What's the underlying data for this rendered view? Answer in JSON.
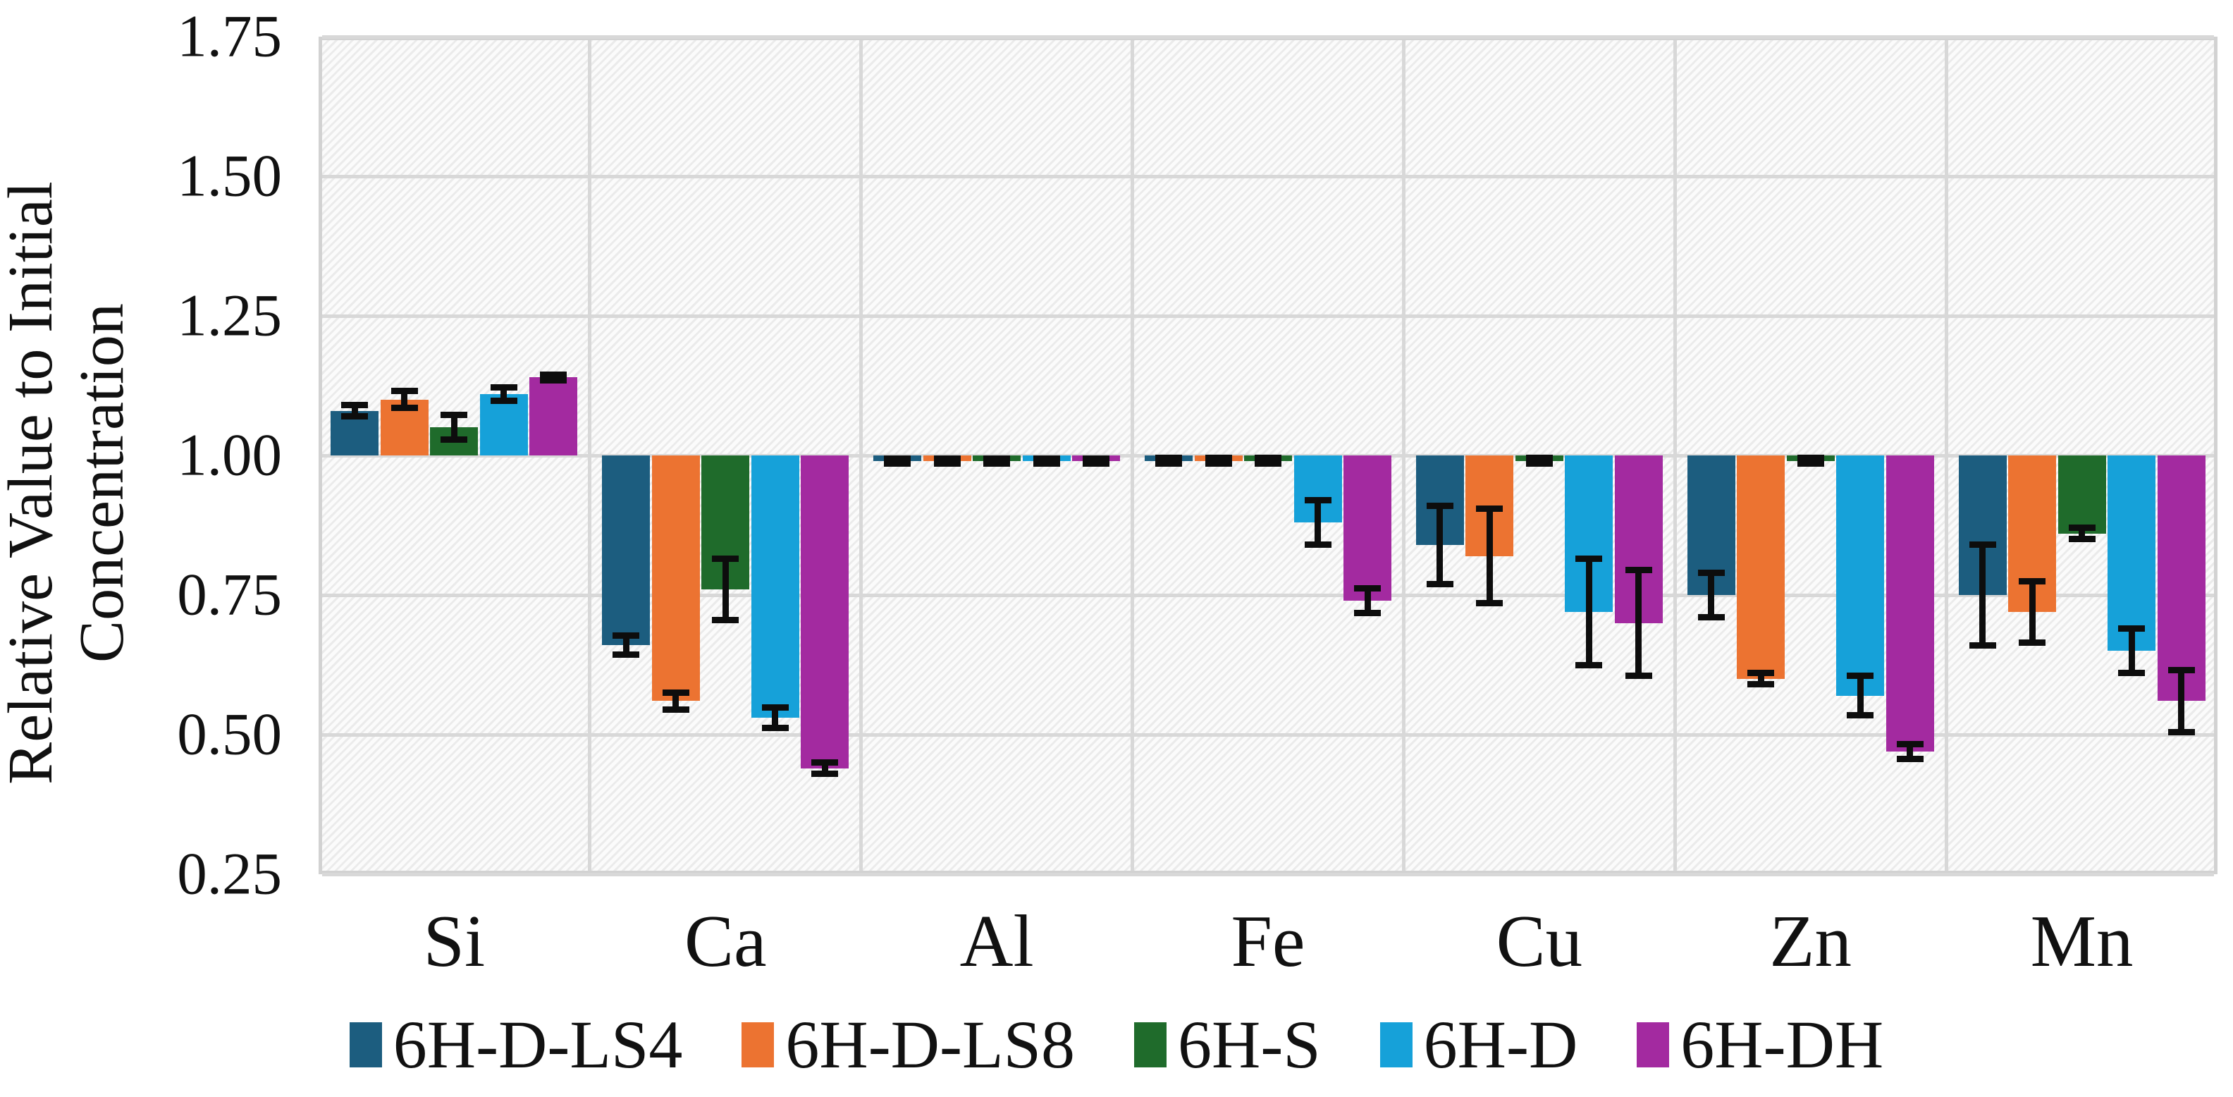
{
  "chart_data": {
    "type": "bar",
    "title": "",
    "ylabel": "Relative Value to Initial Concentration",
    "ylabel_lines": [
      "Relative Value to Initial",
      "Concentration"
    ],
    "xlabel": "",
    "categories": [
      "Si",
      "Ca",
      "Al",
      "Fe",
      "Cu",
      "Zn",
      "Mn"
    ],
    "series": [
      {
        "name": "6H-D-LS4",
        "color": "#1C5D7F",
        "values": [
          1.08,
          0.66,
          0.99,
          0.99,
          0.84,
          0.75,
          0.75
        ],
        "errors": [
          0.01,
          0.017,
          0.004,
          0.005,
          0.07,
          0.04,
          0.09
        ]
      },
      {
        "name": "6H-D-LS8",
        "color": "#EC7331",
        "values": [
          1.1,
          0.56,
          0.99,
          0.99,
          0.82,
          0.6,
          0.72
        ],
        "errors": [
          0.015,
          0.015,
          0.004,
          0.005,
          0.085,
          0.01,
          0.055
        ]
      },
      {
        "name": "6H-S",
        "color": "#1F6B2B",
        "values": [
          1.05,
          0.76,
          0.99,
          0.99,
          0.99,
          0.99,
          0.86
        ],
        "errors": [
          0.022,
          0.055,
          0.004,
          0.005,
          0.005,
          0.005,
          0.01
        ]
      },
      {
        "name": "6H-D",
        "color": "#16A1D9",
        "values": [
          1.11,
          0.53,
          0.99,
          0.88,
          0.72,
          0.57,
          0.65
        ],
        "errors": [
          0.012,
          0.018,
          0.004,
          0.04,
          0.095,
          0.035,
          0.04
        ]
      },
      {
        "name": "6H-DH",
        "color": "#A32AA0",
        "values": [
          1.14,
          0.44,
          0.99,
          0.74,
          0.7,
          0.47,
          0.56
        ],
        "errors": [
          0.005,
          0.01,
          0.004,
          0.022,
          0.095,
          0.013,
          0.055
        ]
      }
    ],
    "baseline": 1.0,
    "ylim": [
      0.25,
      1.75
    ],
    "yticks": [
      1.75,
      1.5,
      1.25,
      1.0,
      0.75,
      0.5,
      0.25
    ],
    "ytick_labels": [
      "1.75",
      "1.50",
      "1.25",
      "1.00",
      "0.75",
      "0.50",
      "0.25"
    ],
    "grid": true,
    "error_bars": true,
    "legend_position": "bottom",
    "colors": {
      "gridline": "#D8D8D8",
      "plot_border": "#D2D2D2",
      "error_bar": "#0D0D0D",
      "text": "#111111"
    }
  }
}
